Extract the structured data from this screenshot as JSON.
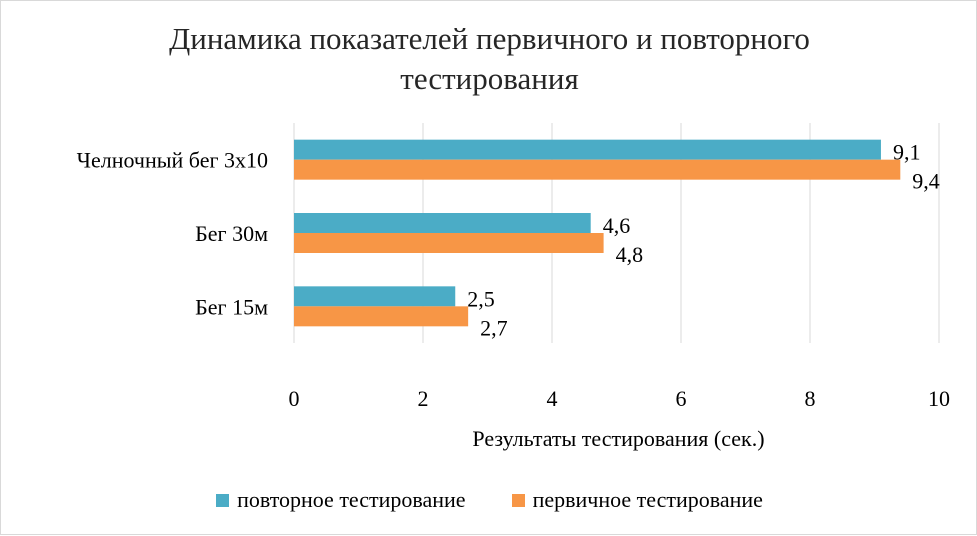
{
  "chart_data": {
    "type": "bar",
    "orientation": "horizontal",
    "title": "Динамика показателей первичного и повторного тестирования",
    "title_lines": [
      "Динамика показателей первичного и повторного",
      "тестирования"
    ],
    "xlabel": "Результаты  тестирования (сек.)",
    "ylabel": "",
    "xlim": [
      0,
      10
    ],
    "x_ticks": [
      "0",
      "2",
      "4",
      "6",
      "8",
      "10"
    ],
    "grid": true,
    "legend_position": "bottom",
    "categories": [
      "Челночный бег 3х10",
      "Бег 30м",
      "Бег 15м"
    ],
    "series": [
      {
        "name": "повторное тестирование",
        "color": "#4bacc6",
        "values": [
          9.1,
          4.6,
          2.5
        ],
        "labels": [
          "9,1",
          "4,6",
          "2,5"
        ]
      },
      {
        "name": "первичное тестирование",
        "color": "#f79646",
        "values": [
          9.4,
          4.8,
          2.7
        ],
        "labels": [
          "9,4",
          "4,8",
          "2,7"
        ]
      }
    ]
  }
}
